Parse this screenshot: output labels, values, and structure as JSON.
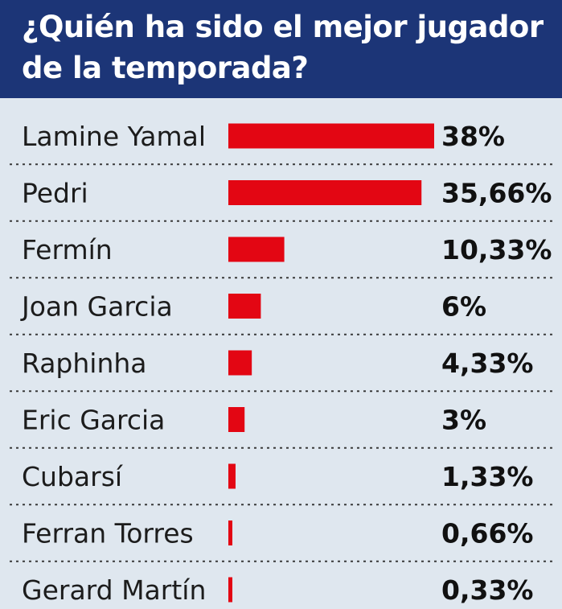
{
  "header": {
    "title_line1": "¿Quién ha sido el mejor jugador",
    "title_line2": "de la temporada?"
  },
  "colors": {
    "header_bg": "#1c3577",
    "background": "#dfe7ef",
    "bar": "#e30613"
  },
  "chart_data": {
    "type": "bar",
    "orientation": "horizontal",
    "title": "¿Quién ha sido el mejor jugador de la temporada?",
    "categories": [
      "Lamine Yamal",
      "Pedri",
      "Fermín",
      "Joan Garcia",
      "Raphinha",
      "Eric Garcia",
      "Cubarsí",
      "Ferran Torres",
      "Gerard Martín"
    ],
    "values": [
      38,
      35.66,
      10.33,
      6,
      4.33,
      3,
      1.33,
      0.66,
      0.33
    ],
    "value_labels": [
      "38%",
      "35,66%",
      "10,33%",
      "6%",
      "4,33%",
      "3%",
      "1,33%",
      "0,66%",
      "0,33%"
    ],
    "unit": "%",
    "grid": false,
    "legend": "none"
  }
}
